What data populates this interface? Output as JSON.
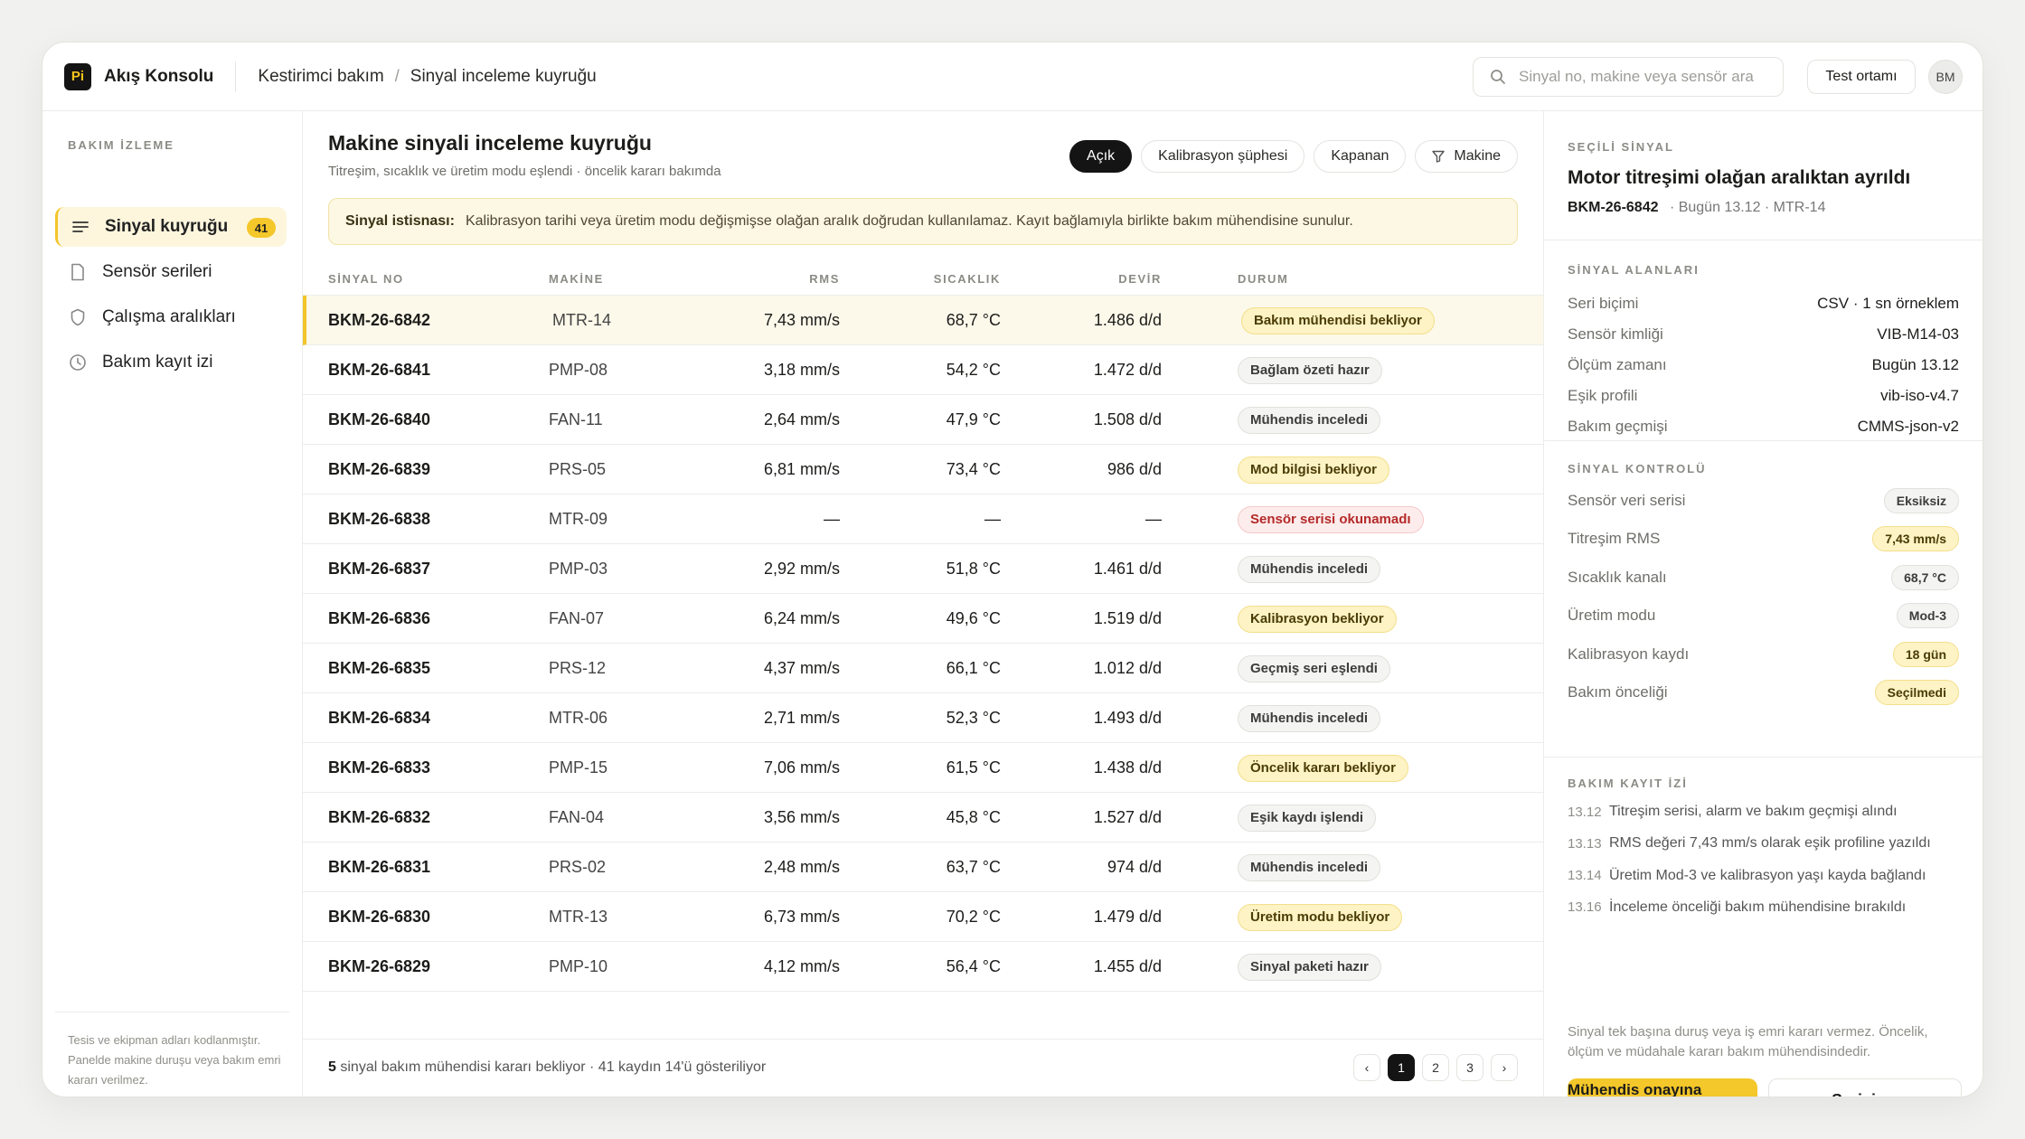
{
  "topbar": {
    "logo": "Pi",
    "app_name": "Akış Konsolu",
    "breadcrumb": [
      "Kestirimci bakım",
      "Sinyal inceleme kuyruğu"
    ],
    "search_placeholder": "Sinyal no, makine veya sensör ara",
    "env_button": "Test ortamı",
    "avatar": "BM"
  },
  "sidebar": {
    "section": "BAKIM İZLEME",
    "items": [
      {
        "label": "Sinyal kuyruğu",
        "icon": "list-icon",
        "badge": "41",
        "active": true
      },
      {
        "label": "Sensör serileri",
        "icon": "document-icon"
      },
      {
        "label": "Çalışma aralıkları",
        "icon": "shield-icon"
      },
      {
        "label": "Bakım kayıt izi",
        "icon": "clock-icon"
      }
    ],
    "footer": "Tesis ve ekipman adları kodlanmıştır. Panelde makine duruşu veya bakım emri kararı verilmez."
  },
  "main": {
    "title": "Makine sinyali inceleme kuyruğu",
    "subtitle": "Titreşim, sıcaklık ve üretim modu eşlendi · öncelik kararı bakımda",
    "filters": [
      {
        "label": "Açık",
        "active": true
      },
      {
        "label": "Kalibrasyon şüphesi"
      },
      {
        "label": "Kapanan"
      },
      {
        "label": "Makine",
        "icon": "filter-icon"
      }
    ],
    "notice": {
      "label": "Sinyal istisnası:",
      "text": "Kalibrasyon tarihi veya üretim modu değişmişse olağan aralık doğrudan kullanılamaz. Kayıt bağlamıyla birlikte bakım mühendisine sunulur."
    },
    "columns": [
      "SİNYAL NO",
      "MAKİNE",
      "RMS",
      "SICAKLIK",
      "DEVİR",
      "DURUM"
    ],
    "rows": [
      {
        "id": "BKM-26-6842",
        "machine": "MTR-14",
        "rms": "7,43 mm/s",
        "temp": "68,7 °C",
        "rpm": "1.486 d/d",
        "status": "Bakım mühendisi bekliyor",
        "tone": "y"
      },
      {
        "id": "BKM-26-6841",
        "machine": "PMP-08",
        "rms": "3,18 mm/s",
        "temp": "54,2 °C",
        "rpm": "1.472 d/d",
        "status": "Bağlam özeti hazır",
        "tone": "g"
      },
      {
        "id": "BKM-26-6840",
        "machine": "FAN-11",
        "rms": "2,64 mm/s",
        "temp": "47,9 °C",
        "rpm": "1.508 d/d",
        "status": "Mühendis inceledi",
        "tone": "g"
      },
      {
        "id": "BKM-26-6839",
        "machine": "PRS-05",
        "rms": "6,81 mm/s",
        "temp": "73,4 °C",
        "rpm": "986 d/d",
        "status": "Mod bilgisi bekliyor",
        "tone": "y"
      },
      {
        "id": "BKM-26-6838",
        "machine": "MTR-09",
        "rms": "—",
        "temp": "—",
        "rpm": "—",
        "status": "Sensör serisi okunamadı",
        "tone": "r"
      },
      {
        "id": "BKM-26-6837",
        "machine": "PMP-03",
        "rms": "2,92 mm/s",
        "temp": "51,8 °C",
        "rpm": "1.461 d/d",
        "status": "Mühendis inceledi",
        "tone": "g"
      },
      {
        "id": "BKM-26-6836",
        "machine": "FAN-07",
        "rms": "6,24 mm/s",
        "temp": "49,6 °C",
        "rpm": "1.519 d/d",
        "status": "Kalibrasyon bekliyor",
        "tone": "y"
      },
      {
        "id": "BKM-26-6835",
        "machine": "PRS-12",
        "rms": "4,37 mm/s",
        "temp": "66,1 °C",
        "rpm": "1.012 d/d",
        "status": "Geçmiş seri eşlendi",
        "tone": "g"
      },
      {
        "id": "BKM-26-6834",
        "machine": "MTR-06",
        "rms": "2,71 mm/s",
        "temp": "52,3 °C",
        "rpm": "1.493 d/d",
        "status": "Mühendis inceledi",
        "tone": "g"
      },
      {
        "id": "BKM-26-6833",
        "machine": "PMP-15",
        "rms": "7,06 mm/s",
        "temp": "61,5 °C",
        "rpm": "1.438 d/d",
        "status": "Öncelik kararı bekliyor",
        "tone": "y"
      },
      {
        "id": "BKM-26-6832",
        "machine": "FAN-04",
        "rms": "3,56 mm/s",
        "temp": "45,8 °C",
        "rpm": "1.527 d/d",
        "status": "Eşik kaydı işlendi",
        "tone": "g"
      },
      {
        "id": "BKM-26-6831",
        "machine": "PRS-02",
        "rms": "2,48 mm/s",
        "temp": "63,7 °C",
        "rpm": "974 d/d",
        "status": "Mühendis inceledi",
        "tone": "g"
      },
      {
        "id": "BKM-26-6830",
        "machine": "MTR-13",
        "rms": "6,73 mm/s",
        "temp": "70,2 °C",
        "rpm": "1.479 d/d",
        "status": "Üretim modu bekliyor",
        "tone": "y"
      },
      {
        "id": "BKM-26-6829",
        "machine": "PMP-10",
        "rms": "4,12 mm/s",
        "temp": "56,4 °C",
        "rpm": "1.455 d/d",
        "status": "Sinyal paketi hazır",
        "tone": "g"
      }
    ],
    "footer": {
      "count": "5",
      "text": "sinyal bakım mühendisi kararı bekliyor · 41 kaydın 14'ü gösteriliyor"
    },
    "pager": {
      "prev": "‹",
      "pages": [
        "1",
        "2",
        "3"
      ],
      "next": "›",
      "current": "1"
    }
  },
  "panel": {
    "section": "SEÇİLİ SİNYAL",
    "title": "Motor titreşimi olağan aralıktan ayrıldı",
    "meta_id": "BKM-26-6842",
    "meta_rest": "· Bugün 13.12 · MTR-14",
    "fields_title": "SİNYAL ALANLARI",
    "fields": [
      {
        "k": "Seri biçimi",
        "v": "CSV · 1 sn örneklem"
      },
      {
        "k": "Sensör kimliği",
        "v": "VIB-M14-03"
      },
      {
        "k": "Ölçüm zamanı",
        "v": "Bugün 13.12"
      },
      {
        "k": "Eşik profili",
        "v": "vib-iso-v4.7"
      },
      {
        "k": "Bakım geçmişi",
        "v": "CMMS-json-v2"
      }
    ],
    "checks_title": "SİNYAL KONTROLÜ",
    "checks": [
      {
        "k": "Sensör veri serisi",
        "v": "Eksiksiz",
        "tone": "g"
      },
      {
        "k": "Titreşim RMS",
        "v": "7,43 mm/s",
        "tone": "y"
      },
      {
        "k": "Sıcaklık kanalı",
        "v": "68,7 °C",
        "tone": "g"
      },
      {
        "k": "Üretim modu",
        "v": "Mod-3",
        "tone": "g"
      },
      {
        "k": "Kalibrasyon kaydı",
        "v": "18 gün",
        "tone": "y"
      },
      {
        "k": "Bakım önceliği",
        "v": "Seçilmedi",
        "tone": "y"
      }
    ],
    "log_title": "BAKIM KAYIT İZİ",
    "log": [
      {
        "t": "13.12",
        "text": "Titreşim serisi, alarm ve bakım geçmişi alındı"
      },
      {
        "t": "13.13",
        "text": "RMS değeri 7,43 mm/s olarak eşik profiline yazıldı"
      },
      {
        "t": "13.14",
        "text": "Üretim Mod-3 ve kalibrasyon yaşı kayda bağlandı"
      },
      {
        "t": "13.16",
        "text": "İnceleme önceliği bakım mühendisine bırakıldı"
      }
    ],
    "note": "Sinyal tek başına duruş veya iş emri kararı vermez. Öncelik, ölçüm ve müdahale kararı bakım mühendisindedir.",
    "primary_button": "Mühendis onayına gönder",
    "secondary_button": "Seriyi aç"
  },
  "colors": {
    "accent": "#f4c72a",
    "dark": "#141414",
    "warn_bg": "#fdf3c4",
    "error": "#b42a2a"
  }
}
